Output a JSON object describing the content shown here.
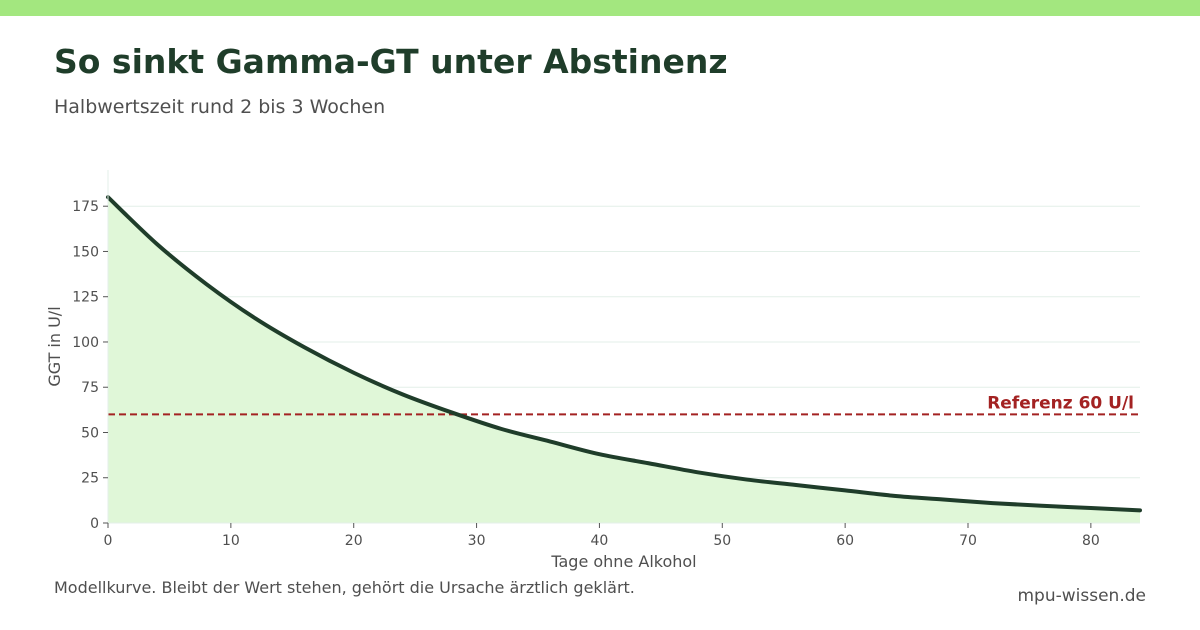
{
  "colors": {
    "accent_bar": "#a3e77f",
    "title": "#1f3d2a",
    "curve": "#1f3d2a",
    "area_fill": "#e0f7d8",
    "reference": "#a32222",
    "grid": "#e3efe8",
    "text_muted": "#4f4f4f"
  },
  "header": {
    "title": "So sinkt Gamma-GT unter Abstinenz",
    "subtitle": "Halbwertszeit rund 2 bis 3 Wochen"
  },
  "footer": {
    "note": "Modellkurve. Bleibt der Wert stehen, gehört die Ursache ärztlich geklärt.",
    "source": "mpu-wissen.de"
  },
  "chart_data": {
    "type": "area",
    "xlabel": "Tage ohne Alkohol",
    "ylabel": "GGT in U/l",
    "xlim": [
      0,
      84
    ],
    "ylim": [
      0,
      195
    ],
    "xticks": [
      0,
      10,
      20,
      30,
      40,
      50,
      60,
      70,
      80
    ],
    "yticks": [
      0,
      25,
      50,
      75,
      100,
      125,
      150,
      175
    ],
    "grid": "horizontal",
    "series": [
      {
        "x": [
          0,
          4,
          8,
          12,
          16,
          20,
          24,
          28,
          32,
          36,
          40,
          44,
          48,
          52,
          56,
          60,
          64,
          68,
          72,
          76,
          80,
          84
        ],
        "values": [
          180,
          154,
          132,
          113,
          97,
          83,
          71,
          61,
          52,
          45,
          38,
          33,
          28,
          24,
          21,
          18,
          15,
          13,
          11,
          9.5,
          8.3,
          7
        ]
      }
    ],
    "reference_line": {
      "y": 60,
      "label": "Referenz 60 U/l"
    }
  }
}
